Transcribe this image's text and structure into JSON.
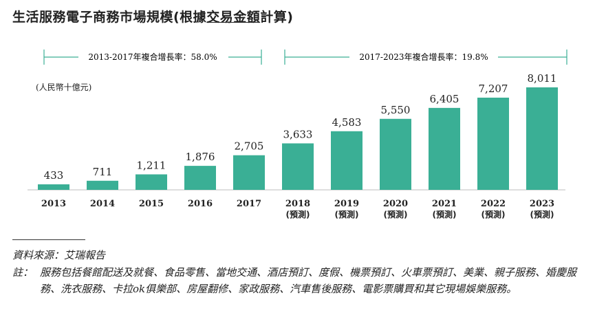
{
  "title_prefix": "生活服務電子商務市場規模(根據",
  "title_underlined": "交易金額",
  "title_suffix": "計算)",
  "unit": "(人民幣十億元)",
  "cagr": [
    {
      "text": "2013-2017年複合增長率：58.0%"
    },
    {
      "text": "2017-2023年複合增長率：19.8%"
    }
  ],
  "chart_data": {
    "type": "bar",
    "categories": [
      "2013",
      "2014",
      "2015",
      "2016",
      "2017",
      "2018",
      "2019",
      "2020",
      "2021",
      "2022",
      "2023"
    ],
    "sublabels": [
      "",
      "",
      "",
      "",
      "",
      "(預測)",
      "(預測)",
      "(預測)",
      "(預測)",
      "(預測)",
      "(預測)"
    ],
    "values": [
      433,
      711,
      1211,
      1876,
      2705,
      3633,
      4583,
      5550,
      6405,
      7207,
      8011
    ],
    "value_labels": [
      "433",
      "711",
      "1,211",
      "1,876",
      "2,705",
      "3,633",
      "4,583",
      "5,550",
      "6,405",
      "7,207",
      "8,011"
    ],
    "ylim": [
      0,
      8011
    ],
    "bar_color": "#3aaf95",
    "grid": false
  },
  "source": "資料來源：艾瑞報告",
  "note_label": "註：",
  "note_text": "服務包括餐館配送及就餐、食品零售、當地交通、酒店預訂、度假、機票預訂、火車票預訂、美業、親子服務、婚慶服務、洗衣服務、卡拉ok俱樂部、房屋翻修、家政服務、汽車售後服務、電影票購買和其它現場娛樂服務。"
}
